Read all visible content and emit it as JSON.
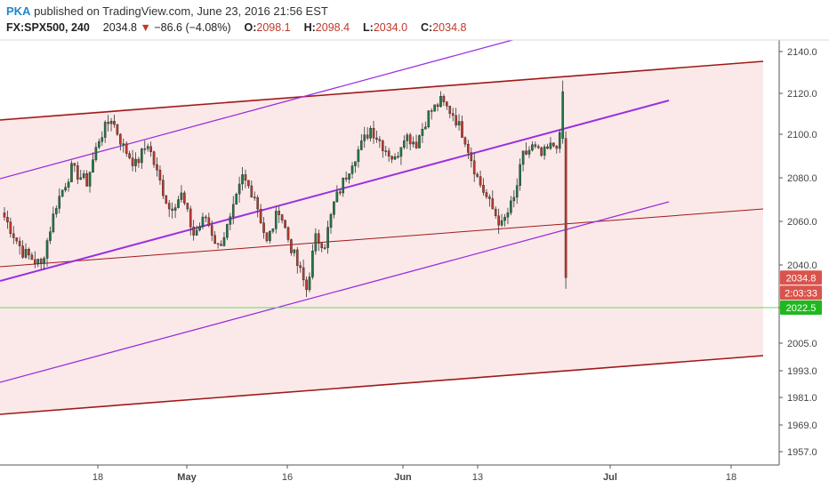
{
  "header": {
    "brand": "PKA",
    "published": " published on TradingView.com, June 23, 2016 21:56 EST",
    "symbol": "FX:SPX500, 240",
    "last": "2034.8",
    "change": "−86.6 (−4.08%)",
    "o_label": "O:",
    "o_value": "2098.1",
    "h_label": "H:",
    "h_value": "2098.4",
    "l_label": "L:",
    "l_value": "2034.0",
    "c_label": "C:",
    "c_value": "2034.8"
  },
  "badges": {
    "price": "2034.8",
    "countdown": "2:03:33",
    "level": "2022.5"
  },
  "colors": {
    "up": "#1f7a45",
    "down": "#c0392b",
    "channel_dark": "#a01818",
    "channel_purple": "#9b30e0",
    "fill": "#fbe9e9",
    "green_line": "#5ee05e",
    "badge_red": "#d9544d",
    "badge_green": "#1fb81f"
  },
  "chart_data": {
    "type": "candlestick",
    "yticks": [
      1957.0,
      1969.0,
      1981.0,
      1993.0,
      2005.0,
      2022.5,
      2040.0,
      2060.0,
      2080.0,
      2100.0,
      2120.0,
      2140.0
    ],
    "ytick_labels": [
      "1957.0",
      "1969.0",
      "1981.0",
      "1993.0",
      "2005.0",
      "2022.5",
      "2040.0",
      "2060.0",
      "2080.0",
      "2100.0",
      "2120.0",
      "2140.0"
    ],
    "xticks": [
      {
        "label": "18",
        "month": false
      },
      {
        "label": "May",
        "month": true
      },
      {
        "label": "16",
        "month": false
      },
      {
        "label": "Jun",
        "month": true
      },
      {
        "label": "13",
        "month": false
      },
      {
        "label": "Jul",
        "month": true
      },
      {
        "label": "18",
        "month": false
      }
    ],
    "horizontal_level": 2022.5,
    "last_price": 2034.8,
    "waypoints": [
      [
        0,
        2062
      ],
      [
        6,
        2046
      ],
      [
        12,
        2040
      ],
      [
        17,
        2068
      ],
      [
        22,
        2084
      ],
      [
        27,
        2078
      ],
      [
        31,
        2098
      ],
      [
        35,
        2108
      ],
      [
        39,
        2094
      ],
      [
        43,
        2086
      ],
      [
        47,
        2096
      ],
      [
        50,
        2082
      ],
      [
        54,
        2066
      ],
      [
        58,
        2072
      ],
      [
        62,
        2054
      ],
      [
        66,
        2062
      ],
      [
        70,
        2048
      ],
      [
        74,
        2060
      ],
      [
        78,
        2080
      ],
      [
        82,
        2072
      ],
      [
        86,
        2050
      ],
      [
        90,
        2066
      ],
      [
        93,
        2052
      ],
      [
        96,
        2040
      ],
      [
        99,
        2030
      ],
      [
        102,
        2052
      ],
      [
        105,
        2050
      ],
      [
        108,
        2068
      ],
      [
        111,
        2078
      ],
      [
        114,
        2088
      ],
      [
        117,
        2095
      ],
      [
        120,
        2103
      ],
      [
        124,
        2095
      ],
      [
        128,
        2088
      ],
      [
        131,
        2100
      ],
      [
        135,
        2096
      ],
      [
        139,
        2110
      ],
      [
        143,
        2116
      ],
      [
        147,
        2110
      ],
      [
        151,
        2098
      ],
      [
        155,
        2080
      ],
      [
        159,
        2068
      ],
      [
        163,
        2058
      ],
      [
        167,
        2070
      ],
      [
        170,
        2090
      ],
      [
        173,
        2094
      ],
      [
        176,
        2090
      ],
      [
        179,
        2094
      ],
      [
        181,
        2096
      ],
      [
        182,
        2098
      ],
      [
        183,
        2120
      ],
      [
        184,
        2034.8
      ]
    ]
  }
}
